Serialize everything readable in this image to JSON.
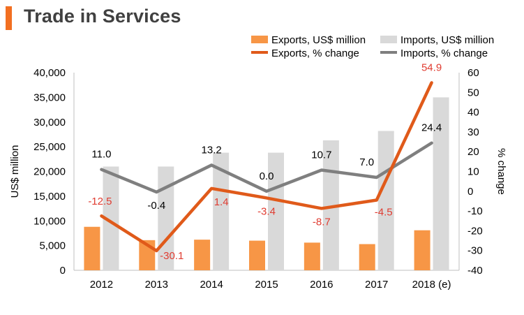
{
  "title": "Trade in Services",
  "colors": {
    "title_bar": "#F26F21",
    "exports_bar": "#F79646",
    "imports_bar": "#D9D9D9",
    "exports_line": "#E05A1A",
    "imports_line": "#7F7F7F",
    "export_label": "#E03C31",
    "import_label": "#000000"
  },
  "chart_data": {
    "type": "bar+line",
    "categories": [
      "2012",
      "2013",
      "2014",
      "2015",
      "2016",
      "2017",
      "2018 (e)"
    ],
    "series": [
      {
        "name": "Exports, US$ million",
        "kind": "bar",
        "axis": "left",
        "values": [
          8800,
          6100,
          6200,
          6000,
          5600,
          5300,
          8100
        ]
      },
      {
        "name": "Imports, US$ million",
        "kind": "bar",
        "axis": "left",
        "values": [
          21000,
          21000,
          23800,
          23800,
          26300,
          28200,
          35000
        ]
      },
      {
        "name": "Exports, % change",
        "kind": "line",
        "axis": "right",
        "values": [
          -12.5,
          -30.1,
          1.4,
          -3.4,
          -8.7,
          -4.5,
          54.9
        ],
        "labels": [
          "-12.5",
          "-30.1",
          "1.4",
          "-3.4",
          "-8.7",
          "-4.5",
          "54.9"
        ]
      },
      {
        "name": "Imports, % change",
        "kind": "line",
        "axis": "right",
        "values": [
          11.0,
          -0.4,
          13.2,
          0.0,
          10.7,
          7.0,
          24.4
        ],
        "labels": [
          "11.0",
          "-0.4",
          "13.2",
          "0.0",
          "10.7",
          "7.0",
          "24.4"
        ]
      }
    ],
    "ylabel": "US$ million",
    "y2label": "% change",
    "ylim": [
      0,
      40000
    ],
    "yticks": [
      0,
      5000,
      10000,
      15000,
      20000,
      25000,
      30000,
      35000,
      40000
    ],
    "ytick_labels": [
      "0",
      "5,000",
      "10,000",
      "15,000",
      "20,000",
      "25,000",
      "30,000",
      "35,000",
      "40,000"
    ],
    "y2lim": [
      -40,
      60
    ],
    "y2ticks": [
      -40,
      -30,
      -20,
      -10,
      0,
      10,
      20,
      30,
      40,
      50,
      60
    ],
    "y2tick_labels": [
      "-40",
      "-30",
      "-20",
      "-10",
      "0",
      "10",
      "20",
      "30",
      "40",
      "50",
      "60"
    ],
    "legend_position": "top",
    "grid": false
  }
}
